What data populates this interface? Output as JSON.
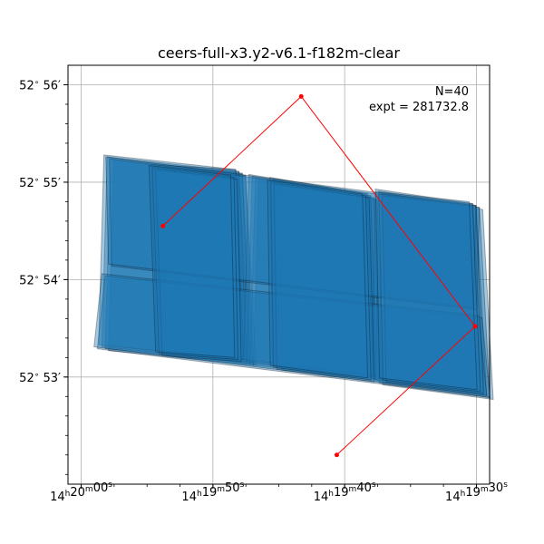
{
  "chart_data": {
    "type": "scatter",
    "title": "ceers-full-x3.y2-v6.1-f182m-clear",
    "annotation": {
      "count": "N=40",
      "exposure": "expt = 281732.8"
    },
    "x_axis": {
      "kind": "RA",
      "ticks": [
        {
          "value_s": 0,
          "h": "14",
          "m": "20",
          "s": "00"
        },
        {
          "value_s": -10,
          "h": "14",
          "m": "19",
          "s": "50"
        },
        {
          "value_s": -20,
          "h": "14",
          "m": "19",
          "s": "40"
        },
        {
          "value_s": -30,
          "h": "14",
          "m": "19",
          "s": "30"
        }
      ],
      "lim": [
        1.0,
        -31.0
      ],
      "minor_step": 2.5
    },
    "y_axis": {
      "kind": "Dec",
      "ticks": [
        {
          "value": 56,
          "deg": "52",
          "min": "56"
        },
        {
          "value": 55,
          "deg": "52",
          "min": "55"
        },
        {
          "value": 54,
          "deg": "52",
          "min": "54"
        },
        {
          "value": 53,
          "deg": "52",
          "min": "53"
        }
      ],
      "lim": [
        51.9,
        56.2
      ],
      "minor_step": 0.2
    },
    "grid": true,
    "line_color": "#ff0000",
    "fill_color": "#1f77b4",
    "path_points": [
      {
        "x": -6.2,
        "y": 54.55
      },
      {
        "x": -16.7,
        "y": 55.88
      },
      {
        "x": -29.9,
        "y": 53.52
      },
      {
        "x": -19.4,
        "y": 52.2
      }
    ],
    "exposures": [
      {
        "corners": [
          [
            -2.1,
            55.25
          ],
          [
            -12.1,
            55.1
          ],
          [
            -12.9,
            53.15
          ],
          [
            -1.7,
            53.3
          ]
        ],
        "n": 4
      },
      {
        "corners": [
          [
            -5.7,
            55.15
          ],
          [
            -12.1,
            55.1
          ],
          [
            -12.7,
            53.15
          ],
          [
            -6.1,
            53.25
          ]
        ],
        "n": 4
      },
      {
        "corners": [
          [
            -13.1,
            55.05
          ],
          [
            -22.1,
            54.85
          ],
          [
            -22.7,
            53.0
          ],
          [
            -12.7,
            53.15
          ]
        ],
        "n": 4
      },
      {
        "corners": [
          [
            -14.7,
            55.02
          ],
          [
            -22.1,
            54.85
          ],
          [
            -22.5,
            52.99
          ],
          [
            -14.9,
            53.1
          ]
        ],
        "n": 4
      },
      {
        "corners": [
          [
            -22.7,
            54.9
          ],
          [
            -30.1,
            54.75
          ],
          [
            -30.9,
            52.8
          ],
          [
            -22.5,
            52.95
          ]
        ],
        "n": 4
      },
      {
        "corners": [
          [
            -2.0,
            55.25
          ],
          [
            -30.1,
            54.75
          ],
          [
            -29.9,
            53.7
          ],
          [
            -2.2,
            54.15
          ]
        ],
        "n": 2
      },
      {
        "corners": [
          [
            -1.7,
            54.05
          ],
          [
            -30.3,
            53.62
          ],
          [
            -30.9,
            52.8
          ],
          [
            -1.1,
            53.3
          ]
        ],
        "n": 2
      },
      {
        "corners": [
          [
            -5.4,
            55.15
          ],
          [
            -11.6,
            55.05
          ],
          [
            -11.9,
            53.18
          ],
          [
            -5.9,
            53.24
          ]
        ],
        "n": 3
      },
      {
        "corners": [
          [
            -14.4,
            55.0
          ],
          [
            -21.6,
            54.86
          ],
          [
            -22.0,
            52.97
          ],
          [
            -14.6,
            53.1
          ]
        ],
        "n": 3
      },
      {
        "corners": [
          [
            -22.6,
            54.88
          ],
          [
            -29.7,
            54.78
          ],
          [
            -30.3,
            52.85
          ],
          [
            -22.9,
            52.97
          ]
        ],
        "n": 3
      }
    ]
  }
}
